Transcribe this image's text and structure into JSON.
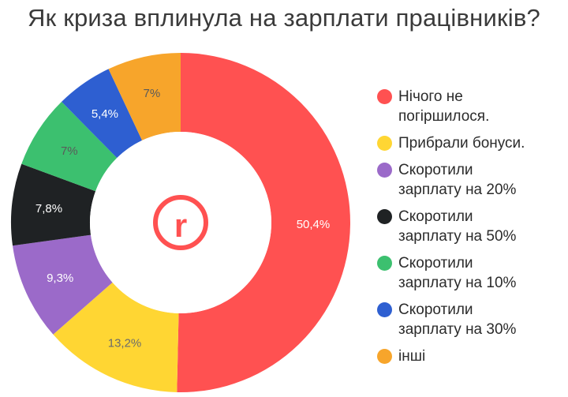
{
  "chart_data": {
    "type": "pie",
    "title": "Як криза вплинула на зарплати працівників?",
    "variant": "donut",
    "legend_position": "right",
    "center_logo": "r",
    "series": [
      {
        "name": "Нічого не погіршилося.",
        "value": 50.4,
        "label": "50,4%",
        "color": "#FF5151"
      },
      {
        "name": "Прибрали бонуси.",
        "value": 13.2,
        "label": "13,2%",
        "color": "#FFD633"
      },
      {
        "name": "Скоротили зарплату на 20%",
        "value": 9.3,
        "label": "9,3%",
        "color": "#9B6AC9"
      },
      {
        "name": "Скоротили зарплату на 50%",
        "value": 7.8,
        "label": "7,8%",
        "color": "#1F2224"
      },
      {
        "name": "Скоротили зарплату на 10%",
        "value": 7,
        "label": "7%",
        "color": "#3CC06F"
      },
      {
        "name": "Скоротили зарплату на 30%",
        "value": 5.4,
        "label": "5,4%",
        "color": "#2E5FD1"
      },
      {
        "name": "інші",
        "value": 7,
        "label": "7%",
        "color": "#F7A52B"
      }
    ]
  }
}
